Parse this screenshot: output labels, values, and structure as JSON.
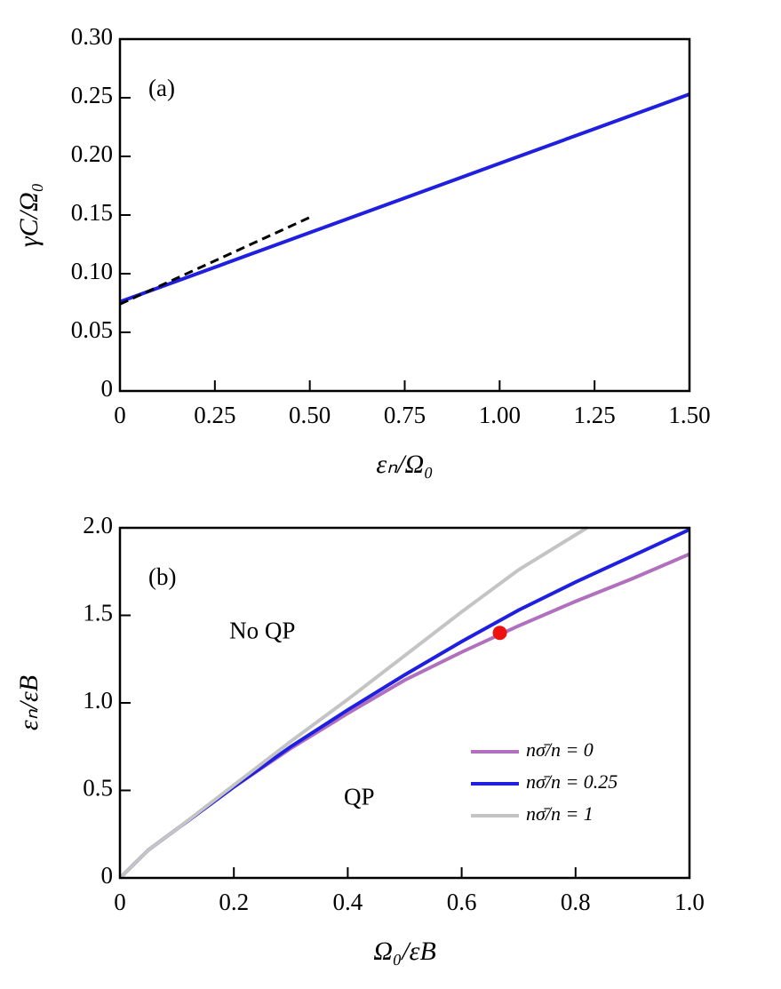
{
  "chart_data": [
    {
      "type": "line",
      "annotation": "(a)",
      "x_label": "εₙ/Ω₀",
      "y_label": "γC/Ω₀",
      "xlim": [
        0,
        1.5
      ],
      "xticks": [
        0,
        0.25,
        {
          "value": 0.5,
          "label": "0.50"
        },
        0.75,
        {
          "value": 1.0,
          "label": "1.00"
        },
        1.25,
        {
          "value": 1.5,
          "label": "1.50"
        }
      ],
      "ylim": [
        0,
        0.3
      ],
      "yticks": [
        0,
        0.05,
        {
          "value": 0.1,
          "label": "0.10"
        },
        0.15,
        {
          "value": 0.2,
          "label": "0.20"
        },
        0.25,
        {
          "value": 0.3,
          "label": "0.30"
        }
      ],
      "series": [
        {
          "color": "#1f1fe0",
          "linestyle": "solid",
          "x": [
            0,
            0.25,
            0.5,
            0.75,
            1.0,
            1.25,
            1.5
          ],
          "values": [
            0.076,
            0.1055,
            0.135,
            0.1645,
            0.194,
            0.2235,
            0.253
          ]
        },
        {
          "color": "#000000",
          "linestyle": "dashed",
          "x": [
            0,
            0.25,
            0.5
          ],
          "values": [
            0.074,
            0.111,
            0.148
          ]
        }
      ]
    },
    {
      "type": "line",
      "annotation": "(b)",
      "x_label": "Ω₀/εB",
      "y_label": "εₙ/εB",
      "xlim": [
        0,
        1
      ],
      "xticks": [
        0,
        0.2,
        0.4,
        0.6,
        0.8,
        {
          "value": 1.0,
          "label": "1.0"
        }
      ],
      "ylim": [
        0,
        2
      ],
      "yticks": [
        0,
        0.5,
        {
          "value": 1.0,
          "label": "1.0"
        },
        1.5,
        {
          "value": 2.0,
          "label": "2.0"
        }
      ],
      "legend": "lower right",
      "regions": [
        {
          "label": "No QP",
          "x": 0.25,
          "y": 1.4
        },
        {
          "label": "QP",
          "x": 0.42,
          "y": 0.45
        }
      ],
      "point": {
        "x": 0.667,
        "y": 1.4,
        "color": "#ee1111"
      },
      "series": [
        {
          "name": "nσ̄/n = 0",
          "color": "#b070bd",
          "x": [
            0,
            0.05,
            0.1,
            0.2,
            0.3,
            0.4,
            0.5,
            0.6,
            0.7,
            0.8,
            0.9,
            1.0
          ],
          "values": [
            0,
            0.16,
            0.28,
            0.52,
            0.74,
            0.94,
            1.13,
            1.29,
            1.44,
            1.58,
            1.71,
            1.85
          ]
        },
        {
          "name": "nσ̄/n = 0.25",
          "color": "#1f1fe0",
          "x": [
            0,
            0.05,
            0.1,
            0.2,
            0.3,
            0.4,
            0.5,
            0.6,
            0.7,
            0.8,
            0.9,
            1.0
          ],
          "values": [
            0,
            0.16,
            0.28,
            0.52,
            0.75,
            0.96,
            1.16,
            1.35,
            1.53,
            1.69,
            1.84,
            1.99
          ]
        },
        {
          "name": "nσ̄/n = 1",
          "color": "#c4c4c4",
          "x": [
            0,
            0.05,
            0.1,
            0.2,
            0.3,
            0.4,
            0.5,
            0.6,
            0.7,
            0.82
          ],
          "values": [
            0,
            0.16,
            0.28,
            0.53,
            0.78,
            1.02,
            1.27,
            1.52,
            1.76,
            2.0
          ]
        }
      ]
    }
  ]
}
